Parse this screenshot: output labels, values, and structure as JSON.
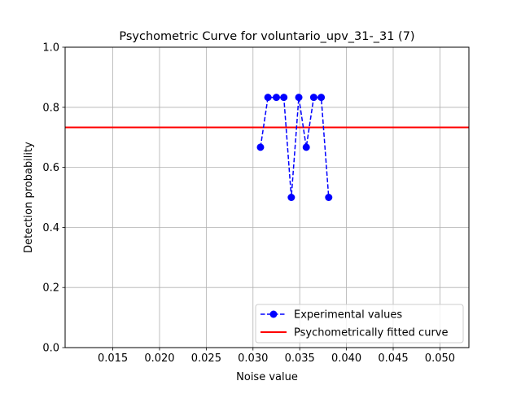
{
  "chart_data": {
    "type": "line",
    "title": "Psychometric Curve for voluntario_upv_31-_31 (7)",
    "xlabel": "Noise value",
    "ylabel": "Detection probability",
    "xlim": [
      0.0099,
      0.0531
    ],
    "ylim": [
      0.0,
      1.0
    ],
    "xticks": [
      0.015,
      0.02,
      0.025,
      0.03,
      0.035,
      0.04,
      0.045,
      0.05
    ],
    "xtick_labels": [
      "0.015",
      "0.020",
      "0.025",
      "0.030",
      "0.035",
      "0.040",
      "0.045",
      "0.050"
    ],
    "yticks": [
      0.0,
      0.2,
      0.4,
      0.6,
      0.8,
      1.0
    ],
    "ytick_labels": [
      "0.0",
      "0.2",
      "0.4",
      "0.6",
      "0.8",
      "1.0"
    ],
    "grid": true,
    "legend_position": "lower-right",
    "series": [
      {
        "name": "Experimental values",
        "style": "dashed-line-with-circle-markers",
        "color": "#0000ff",
        "x": [
          0.0308,
          0.0316,
          0.0325,
          0.0333,
          0.0341,
          0.0349,
          0.0357,
          0.0365,
          0.0373,
          0.0381
        ],
        "y": [
          0.667,
          0.833,
          0.833,
          0.833,
          0.5,
          0.833,
          0.667,
          0.833,
          0.833,
          0.5
        ]
      },
      {
        "name": "Psychometrically fitted curve",
        "style": "solid-line",
        "color": "#ff0000",
        "x": [
          0.0099,
          0.0531
        ],
        "y": [
          0.733,
          0.733
        ]
      }
    ]
  }
}
